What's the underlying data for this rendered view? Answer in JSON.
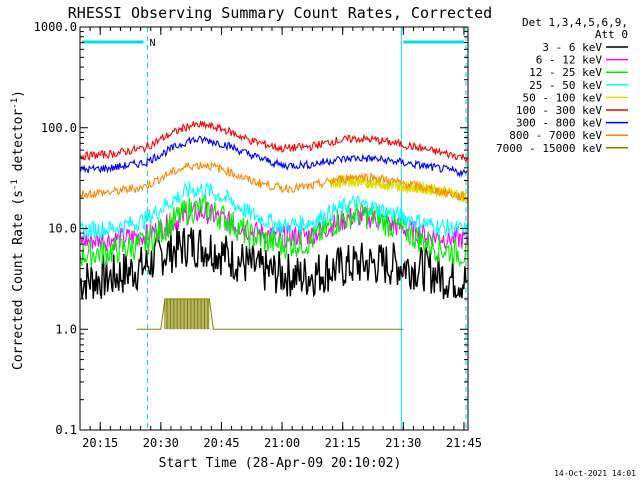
{
  "chart_data": {
    "type": "line",
    "title": "RHESSI Observing Summary Count Rates, Corrected",
    "detector_note": [
      "Det 1,3,4,5,6,9,",
      "Att 0"
    ],
    "ylabel": "Corrected Count Rate (s",
    "ylabel_sup": "-1",
    "ylabel_mid": " detector",
    "ylabel_sup2": "-1",
    "ylabel_end": ")",
    "xlabel": "Start Time (28-Apr-09 20:10:02)",
    "timestamp": "14-Oct-2021 14:01",
    "x_unit": "minutes after 20:10:02",
    "xlim": [
      0,
      96
    ],
    "ylim": [
      0.1,
      1000
    ],
    "yscale": "log",
    "x_ticks": [
      {
        "value": 5,
        "label": "20:15"
      },
      {
        "value": 20,
        "label": "20:30"
      },
      {
        "value": 35,
        "label": "20:45"
      },
      {
        "value": 50,
        "label": "21:00"
      },
      {
        "value": 65,
        "label": "21:15"
      },
      {
        "value": 80,
        "label": "21:30"
      },
      {
        "value": 95,
        "label": "21:45"
      }
    ],
    "y_ticks": [
      {
        "value": 1000,
        "label": "1000.0"
      },
      {
        "value": 100,
        "label": "100.0"
      },
      {
        "value": 10,
        "label": "10.0"
      },
      {
        "value": 1,
        "label": "1.0"
      },
      {
        "value": 0.1,
        "label": "0.1"
      }
    ],
    "night_marker_label": "N",
    "night_intervals": [
      [
        0,
        16.7
      ],
      [
        79.5,
        96
      ]
    ],
    "vertical_lines": [
      {
        "x": 0,
        "style": "solid"
      },
      {
        "x": 16.7,
        "style": "dashed"
      },
      {
        "x": 79.5,
        "style": "solid"
      },
      {
        "x": 95.5,
        "style": "dashed"
      }
    ],
    "series": [
      {
        "name": "3 - 6 keV",
        "color": "#000000",
        "pts": [
          [
            0,
            3.0
          ],
          [
            8,
            3.3
          ],
          [
            16,
            4.2
          ],
          [
            20,
            5.5
          ],
          [
            27,
            7.0
          ],
          [
            32,
            6.5
          ],
          [
            38,
            5.0
          ],
          [
            45,
            3.8
          ],
          [
            55,
            3.3
          ],
          [
            63,
            4.0
          ],
          [
            70,
            4.5
          ],
          [
            78,
            4.4
          ],
          [
            85,
            4.0
          ],
          [
            90,
            3.3
          ],
          [
            96,
            3.0
          ]
        ]
      },
      {
        "name": "6 - 12 keV",
        "color": "#ff00ff",
        "pts": [
          [
            0,
            7.5
          ],
          [
            8,
            7.8
          ],
          [
            16,
            8.5
          ],
          [
            22,
            11
          ],
          [
            27,
            14
          ],
          [
            31,
            14.5
          ],
          [
            36,
            12
          ],
          [
            42,
            9.5
          ],
          [
            50,
            8.3
          ],
          [
            57,
            8.6
          ],
          [
            63,
            11
          ],
          [
            68,
            13.5
          ],
          [
            73,
            12.5
          ],
          [
            80,
            10
          ],
          [
            88,
            8.2
          ],
          [
            96,
            7.8
          ]
        ]
      },
      {
        "name": "12 - 25 keV",
        "color": "#00ee00",
        "pts": [
          [
            0,
            5.5
          ],
          [
            8,
            6.0
          ],
          [
            16,
            7.0
          ],
          [
            22,
            11
          ],
          [
            27,
            15.5
          ],
          [
            31,
            16
          ],
          [
            36,
            12.5
          ],
          [
            42,
            8.5
          ],
          [
            50,
            6.8
          ],
          [
            57,
            7.5
          ],
          [
            63,
            11.5
          ],
          [
            68,
            14
          ],
          [
            73,
            13
          ],
          [
            80,
            9.5
          ],
          [
            88,
            6.5
          ],
          [
            96,
            5.5
          ]
        ]
      },
      {
        "name": "25 - 50 keV",
        "color": "#00ffff",
        "pts": [
          [
            0,
            9.5
          ],
          [
            8,
            10
          ],
          [
            16,
            12
          ],
          [
            22,
            18
          ],
          [
            27,
            24
          ],
          [
            31,
            24.5
          ],
          [
            36,
            20
          ],
          [
            42,
            14
          ],
          [
            50,
            10.5
          ],
          [
            57,
            11.5
          ],
          [
            63,
            15
          ],
          [
            68,
            18
          ],
          [
            73,
            16
          ],
          [
            80,
            13
          ],
          [
            88,
            10.5
          ],
          [
            96,
            9.5
          ]
        ]
      },
      {
        "name": "50 - 100 keV",
        "color": "#dddd00",
        "pts": [
          [
            62,
            28
          ],
          [
            66,
            30
          ],
          [
            70,
            29
          ],
          [
            74,
            28
          ],
          [
            78,
            27
          ],
          [
            82,
            26
          ],
          [
            86,
            25
          ],
          [
            90,
            23
          ],
          [
            96,
            20
          ]
        ]
      },
      {
        "name": "100 - 300 keV",
        "color": "#ff0000",
        "pts": [
          [
            0,
            52
          ],
          [
            8,
            55
          ],
          [
            16,
            63
          ],
          [
            22,
            85
          ],
          [
            27,
            105
          ],
          [
            31,
            106
          ],
          [
            36,
            95
          ],
          [
            42,
            75
          ],
          [
            50,
            62
          ],
          [
            57,
            65
          ],
          [
            63,
            74
          ],
          [
            68,
            78
          ],
          [
            73,
            76
          ],
          [
            80,
            68
          ],
          [
            88,
            58
          ],
          [
            96,
            50
          ]
        ]
      },
      {
        "name": "300 - 800 keV",
        "color": "#0000ff",
        "pts": [
          [
            0,
            38
          ],
          [
            8,
            40
          ],
          [
            16,
            45
          ],
          [
            22,
            60
          ],
          [
            27,
            75
          ],
          [
            31,
            76
          ],
          [
            36,
            68
          ],
          [
            42,
            54
          ],
          [
            50,
            42
          ],
          [
            57,
            43
          ],
          [
            63,
            48
          ],
          [
            68,
            50
          ],
          [
            73,
            49
          ],
          [
            80,
            45
          ],
          [
            88,
            40
          ],
          [
            96,
            35
          ]
        ]
      },
      {
        "name": "800 - 7000 keV",
        "color": "#ff8800",
        "pts": [
          [
            0,
            22
          ],
          [
            8,
            23
          ],
          [
            16,
            26
          ],
          [
            22,
            35
          ],
          [
            27,
            42
          ],
          [
            31,
            43
          ],
          [
            36,
            38
          ],
          [
            42,
            30
          ],
          [
            50,
            25
          ],
          [
            57,
            26
          ],
          [
            63,
            30
          ],
          [
            68,
            33
          ],
          [
            73,
            32
          ],
          [
            80,
            28
          ],
          [
            88,
            24
          ],
          [
            96,
            20
          ]
        ]
      },
      {
        "name": "7000 - 15000 keV",
        "color": "#808000",
        "pts": [
          [
            14,
            1.0
          ],
          [
            20,
            1.0
          ],
          [
            21,
            2.0
          ],
          [
            24,
            2.0
          ],
          [
            27,
            2.0
          ],
          [
            30,
            2.0
          ],
          [
            32,
            2.0
          ],
          [
            33,
            1.0
          ],
          [
            36,
            1.0
          ],
          [
            61,
            1.0
          ],
          [
            75,
            1.0
          ],
          [
            80,
            1.0
          ]
        ]
      }
    ]
  }
}
